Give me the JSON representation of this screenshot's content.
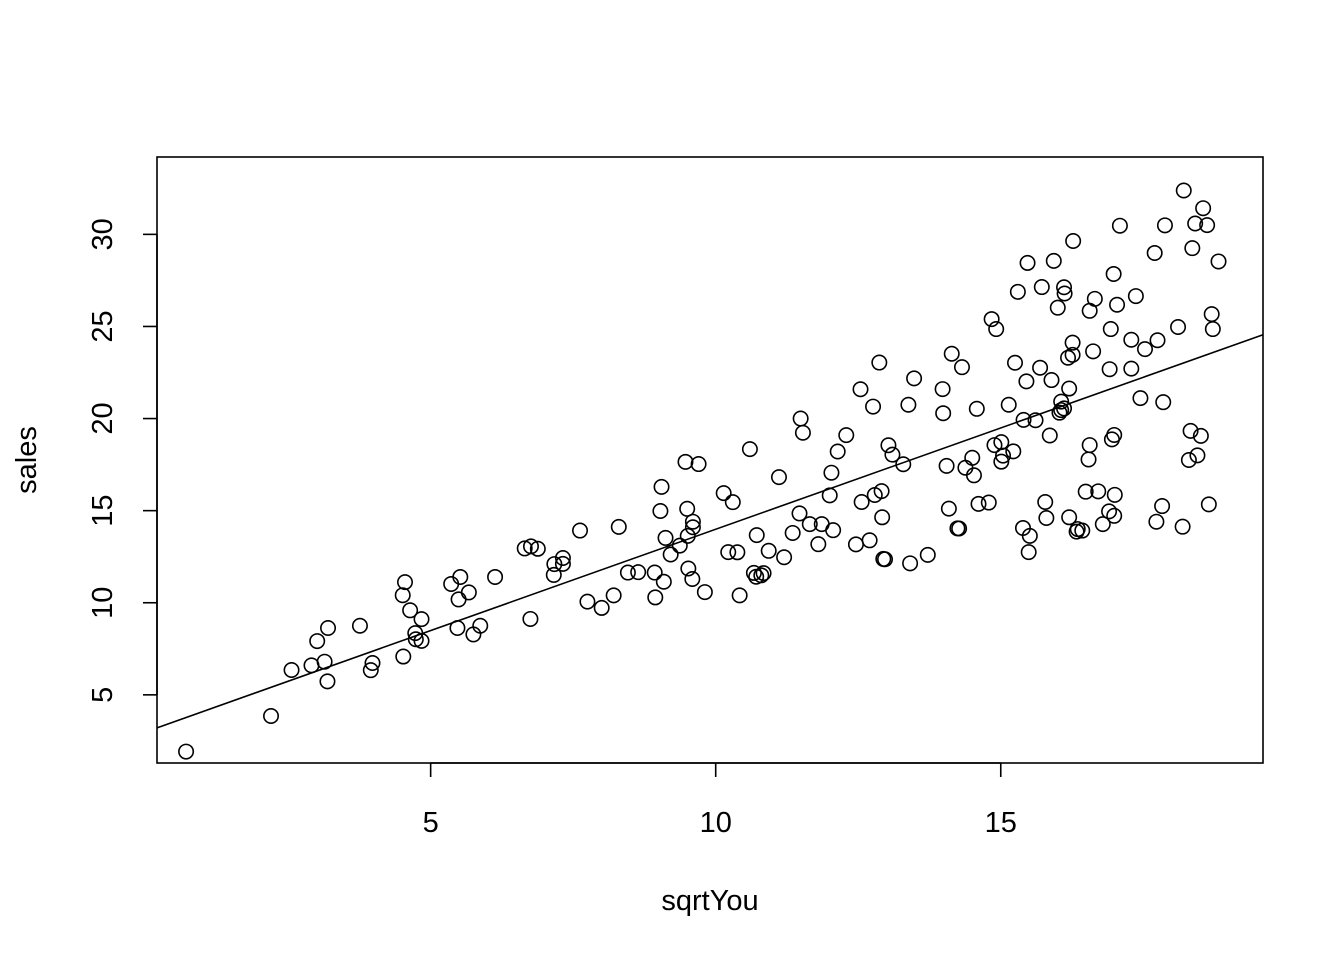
{
  "chart_data": {
    "type": "scatter",
    "title": "",
    "xlabel": "sqrtYou",
    "ylabel": "sales",
    "xlim": [
      0.2,
      19.6
    ],
    "ylim": [
      1.3,
      34.2
    ],
    "xticks": [
      5,
      10,
      15
    ],
    "yticks": [
      5,
      10,
      15,
      20,
      25,
      30
    ],
    "grid": false,
    "legend": "none",
    "regression_line": {
      "intercept": 2.99,
      "slope": 1.1
    },
    "points": [
      [
        0.71,
        1.92
      ],
      [
        2.2,
        3.85
      ],
      [
        2.56,
        6.35
      ],
      [
        2.91,
        6.6
      ],
      [
        3.01,
        7.92
      ],
      [
        3.14,
        6.8
      ],
      [
        3.2,
        8.63
      ],
      [
        3.19,
        5.73
      ],
      [
        3.76,
        8.75
      ],
      [
        3.98,
        6.73
      ],
      [
        3.95,
        6.34
      ],
      [
        4.51,
        10.41
      ],
      [
        4.55,
        11.12
      ],
      [
        4.52,
        7.08
      ],
      [
        4.64,
        9.59
      ],
      [
        4.74,
        8.02
      ],
      [
        4.73,
        8.35
      ],
      [
        4.84,
        7.93
      ],
      [
        4.84,
        9.11
      ],
      [
        5.36,
        11.02
      ],
      [
        5.49,
        10.18
      ],
      [
        5.52,
        11.4
      ],
      [
        5.47,
        8.63
      ],
      [
        5.67,
        10.56
      ],
      [
        5.75,
        8.28
      ],
      [
        5.87,
        8.75
      ],
      [
        6.13,
        11.4
      ],
      [
        6.65,
        12.95
      ],
      [
        6.76,
        13.06
      ],
      [
        6.75,
        9.12
      ],
      [
        6.88,
        12.93
      ],
      [
        7.16,
        11.51
      ],
      [
        7.17,
        12.1
      ],
      [
        7.32,
        12.43
      ],
      [
        7.32,
        12.11
      ],
      [
        7.62,
        13.92
      ],
      [
        7.75,
        10.06
      ],
      [
        8.0,
        9.72
      ],
      [
        8.21,
        10.4
      ],
      [
        8.3,
        14.12
      ],
      [
        8.46,
        11.64
      ],
      [
        8.64,
        11.66
      ],
      [
        8.93,
        11.64
      ],
      [
        8.94,
        10.29
      ],
      [
        9.03,
        14.98
      ],
      [
        9.05,
        16.29
      ],
      [
        9.09,
        11.14
      ],
      [
        9.12,
        13.52
      ],
      [
        9.21,
        12.62
      ],
      [
        9.37,
        13.1
      ],
      [
        9.47,
        17.65
      ],
      [
        9.5,
        15.1
      ],
      [
        9.51,
        13.63
      ],
      [
        9.52,
        11.86
      ],
      [
        9.59,
        11.29
      ],
      [
        9.6,
        14.4
      ],
      [
        9.6,
        14.1
      ],
      [
        9.7,
        17.53
      ],
      [
        9.81,
        10.58
      ],
      [
        10.14,
        15.95
      ],
      [
        10.22,
        12.75
      ],
      [
        10.3,
        15.46
      ],
      [
        10.38,
        12.74
      ],
      [
        10.42,
        10.4
      ],
      [
        10.6,
        18.34
      ],
      [
        10.67,
        11.62
      ],
      [
        10.71,
        11.41
      ],
      [
        10.72,
        13.67
      ],
      [
        10.8,
        11.49
      ],
      [
        10.84,
        11.61
      ],
      [
        10.93,
        12.82
      ],
      [
        11.11,
        16.82
      ],
      [
        11.2,
        12.47
      ],
      [
        11.35,
        13.79
      ],
      [
        11.47,
        14.85
      ],
      [
        11.49,
        20.0
      ],
      [
        11.53,
        19.23
      ],
      [
        11.65,
        14.27
      ],
      [
        11.8,
        13.18
      ],
      [
        11.86,
        14.27
      ],
      [
        12.0,
        15.83
      ],
      [
        12.03,
        17.06
      ],
      [
        12.06,
        13.94
      ],
      [
        12.14,
        18.21
      ],
      [
        12.29,
        19.1
      ],
      [
        12.46,
        13.17
      ],
      [
        12.54,
        21.59
      ],
      [
        12.56,
        15.47
      ],
      [
        12.7,
        13.39
      ],
      [
        12.76,
        20.65
      ],
      [
        12.79,
        15.85
      ],
      [
        12.87,
        23.04
      ],
      [
        12.91,
        16.06
      ],
      [
        12.92,
        14.64
      ],
      [
        12.94,
        12.38
      ],
      [
        12.97,
        12.36
      ],
      [
        13.03,
        18.55
      ],
      [
        13.1,
        18.04
      ],
      [
        13.29,
        17.52
      ],
      [
        13.38,
        20.75
      ],
      [
        13.41,
        12.14
      ],
      [
        13.48,
        22.18
      ],
      [
        13.72,
        12.6
      ],
      [
        13.98,
        21.6
      ],
      [
        13.99,
        20.29
      ],
      [
        14.05,
        17.43
      ],
      [
        14.09,
        15.11
      ],
      [
        14.14,
        23.52
      ],
      [
        14.24,
        14.04
      ],
      [
        14.27,
        14.03
      ],
      [
        14.32,
        22.79
      ],
      [
        14.38,
        17.33
      ],
      [
        14.5,
        17.87
      ],
      [
        14.53,
        16.92
      ],
      [
        14.58,
        20.53
      ],
      [
        14.61,
        15.37
      ],
      [
        14.79,
        15.44
      ],
      [
        14.84,
        25.4
      ],
      [
        14.89,
        18.56
      ],
      [
        14.92,
        24.86
      ],
      [
        15.01,
        17.66
      ],
      [
        15.01,
        18.72
      ],
      [
        15.04,
        17.99
      ],
      [
        15.14,
        20.75
      ],
      [
        15.22,
        18.22
      ],
      [
        15.25,
        23.03
      ],
      [
        15.3,
        26.88
      ],
      [
        15.39,
        14.06
      ],
      [
        15.4,
        19.93
      ],
      [
        15.45,
        22.02
      ],
      [
        15.47,
        28.45
      ],
      [
        15.49,
        12.75
      ],
      [
        15.51,
        13.63
      ],
      [
        15.61,
        19.91
      ],
      [
        15.69,
        22.76
      ],
      [
        15.72,
        27.14
      ],
      [
        15.78,
        15.47
      ],
      [
        15.8,
        14.6
      ],
      [
        15.86,
        19.08
      ],
      [
        15.89,
        22.09
      ],
      [
        15.93,
        28.56
      ],
      [
        16.0,
        26.02
      ],
      [
        16.03,
        20.32
      ],
      [
        16.06,
        20.46
      ],
      [
        16.06,
        20.92
      ],
      [
        16.11,
        20.55
      ],
      [
        16.11,
        27.13
      ],
      [
        16.12,
        26.79
      ],
      [
        16.18,
        23.3
      ],
      [
        16.2,
        14.64
      ],
      [
        16.2,
        21.63
      ],
      [
        16.26,
        24.12
      ],
      [
        16.26,
        23.46
      ],
      [
        16.27,
        29.64
      ],
      [
        16.33,
        13.86
      ],
      [
        16.35,
        14.0
      ],
      [
        16.43,
        13.92
      ],
      [
        16.49,
        16.03
      ],
      [
        16.54,
        17.78
      ],
      [
        16.56,
        18.56
      ],
      [
        16.56,
        25.85
      ],
      [
        16.62,
        23.65
      ],
      [
        16.65,
        26.5
      ],
      [
        16.71,
        16.05
      ],
      [
        16.79,
        14.27
      ],
      [
        16.9,
        14.96
      ],
      [
        16.91,
        22.68
      ],
      [
        16.93,
        24.86
      ],
      [
        16.95,
        18.87
      ],
      [
        16.98,
        27.85
      ],
      [
        16.99,
        14.72
      ],
      [
        16.99,
        19.11
      ],
      [
        17.0,
        15.86
      ],
      [
        17.04,
        26.18
      ],
      [
        17.09,
        30.47
      ],
      [
        17.29,
        24.28
      ],
      [
        17.29,
        22.71
      ],
      [
        17.37,
        26.65
      ],
      [
        17.45,
        21.11
      ],
      [
        17.53,
        23.77
      ],
      [
        17.7,
        28.99
      ],
      [
        17.73,
        14.4
      ],
      [
        17.75,
        24.25
      ],
      [
        17.83,
        15.25
      ],
      [
        17.85,
        20.89
      ],
      [
        17.88,
        30.49
      ],
      [
        18.11,
        24.97
      ],
      [
        18.19,
        14.13
      ],
      [
        18.21,
        32.38
      ],
      [
        18.3,
        17.75
      ],
      [
        18.33,
        19.33
      ],
      [
        18.36,
        29.25
      ],
      [
        18.41,
        30.59
      ],
      [
        18.45,
        18.0
      ],
      [
        18.51,
        19.06
      ],
      [
        18.55,
        31.42
      ],
      [
        18.62,
        30.5
      ],
      [
        18.65,
        15.34
      ],
      [
        18.7,
        25.67
      ],
      [
        18.72,
        24.86
      ],
      [
        18.82,
        28.53
      ]
    ]
  }
}
